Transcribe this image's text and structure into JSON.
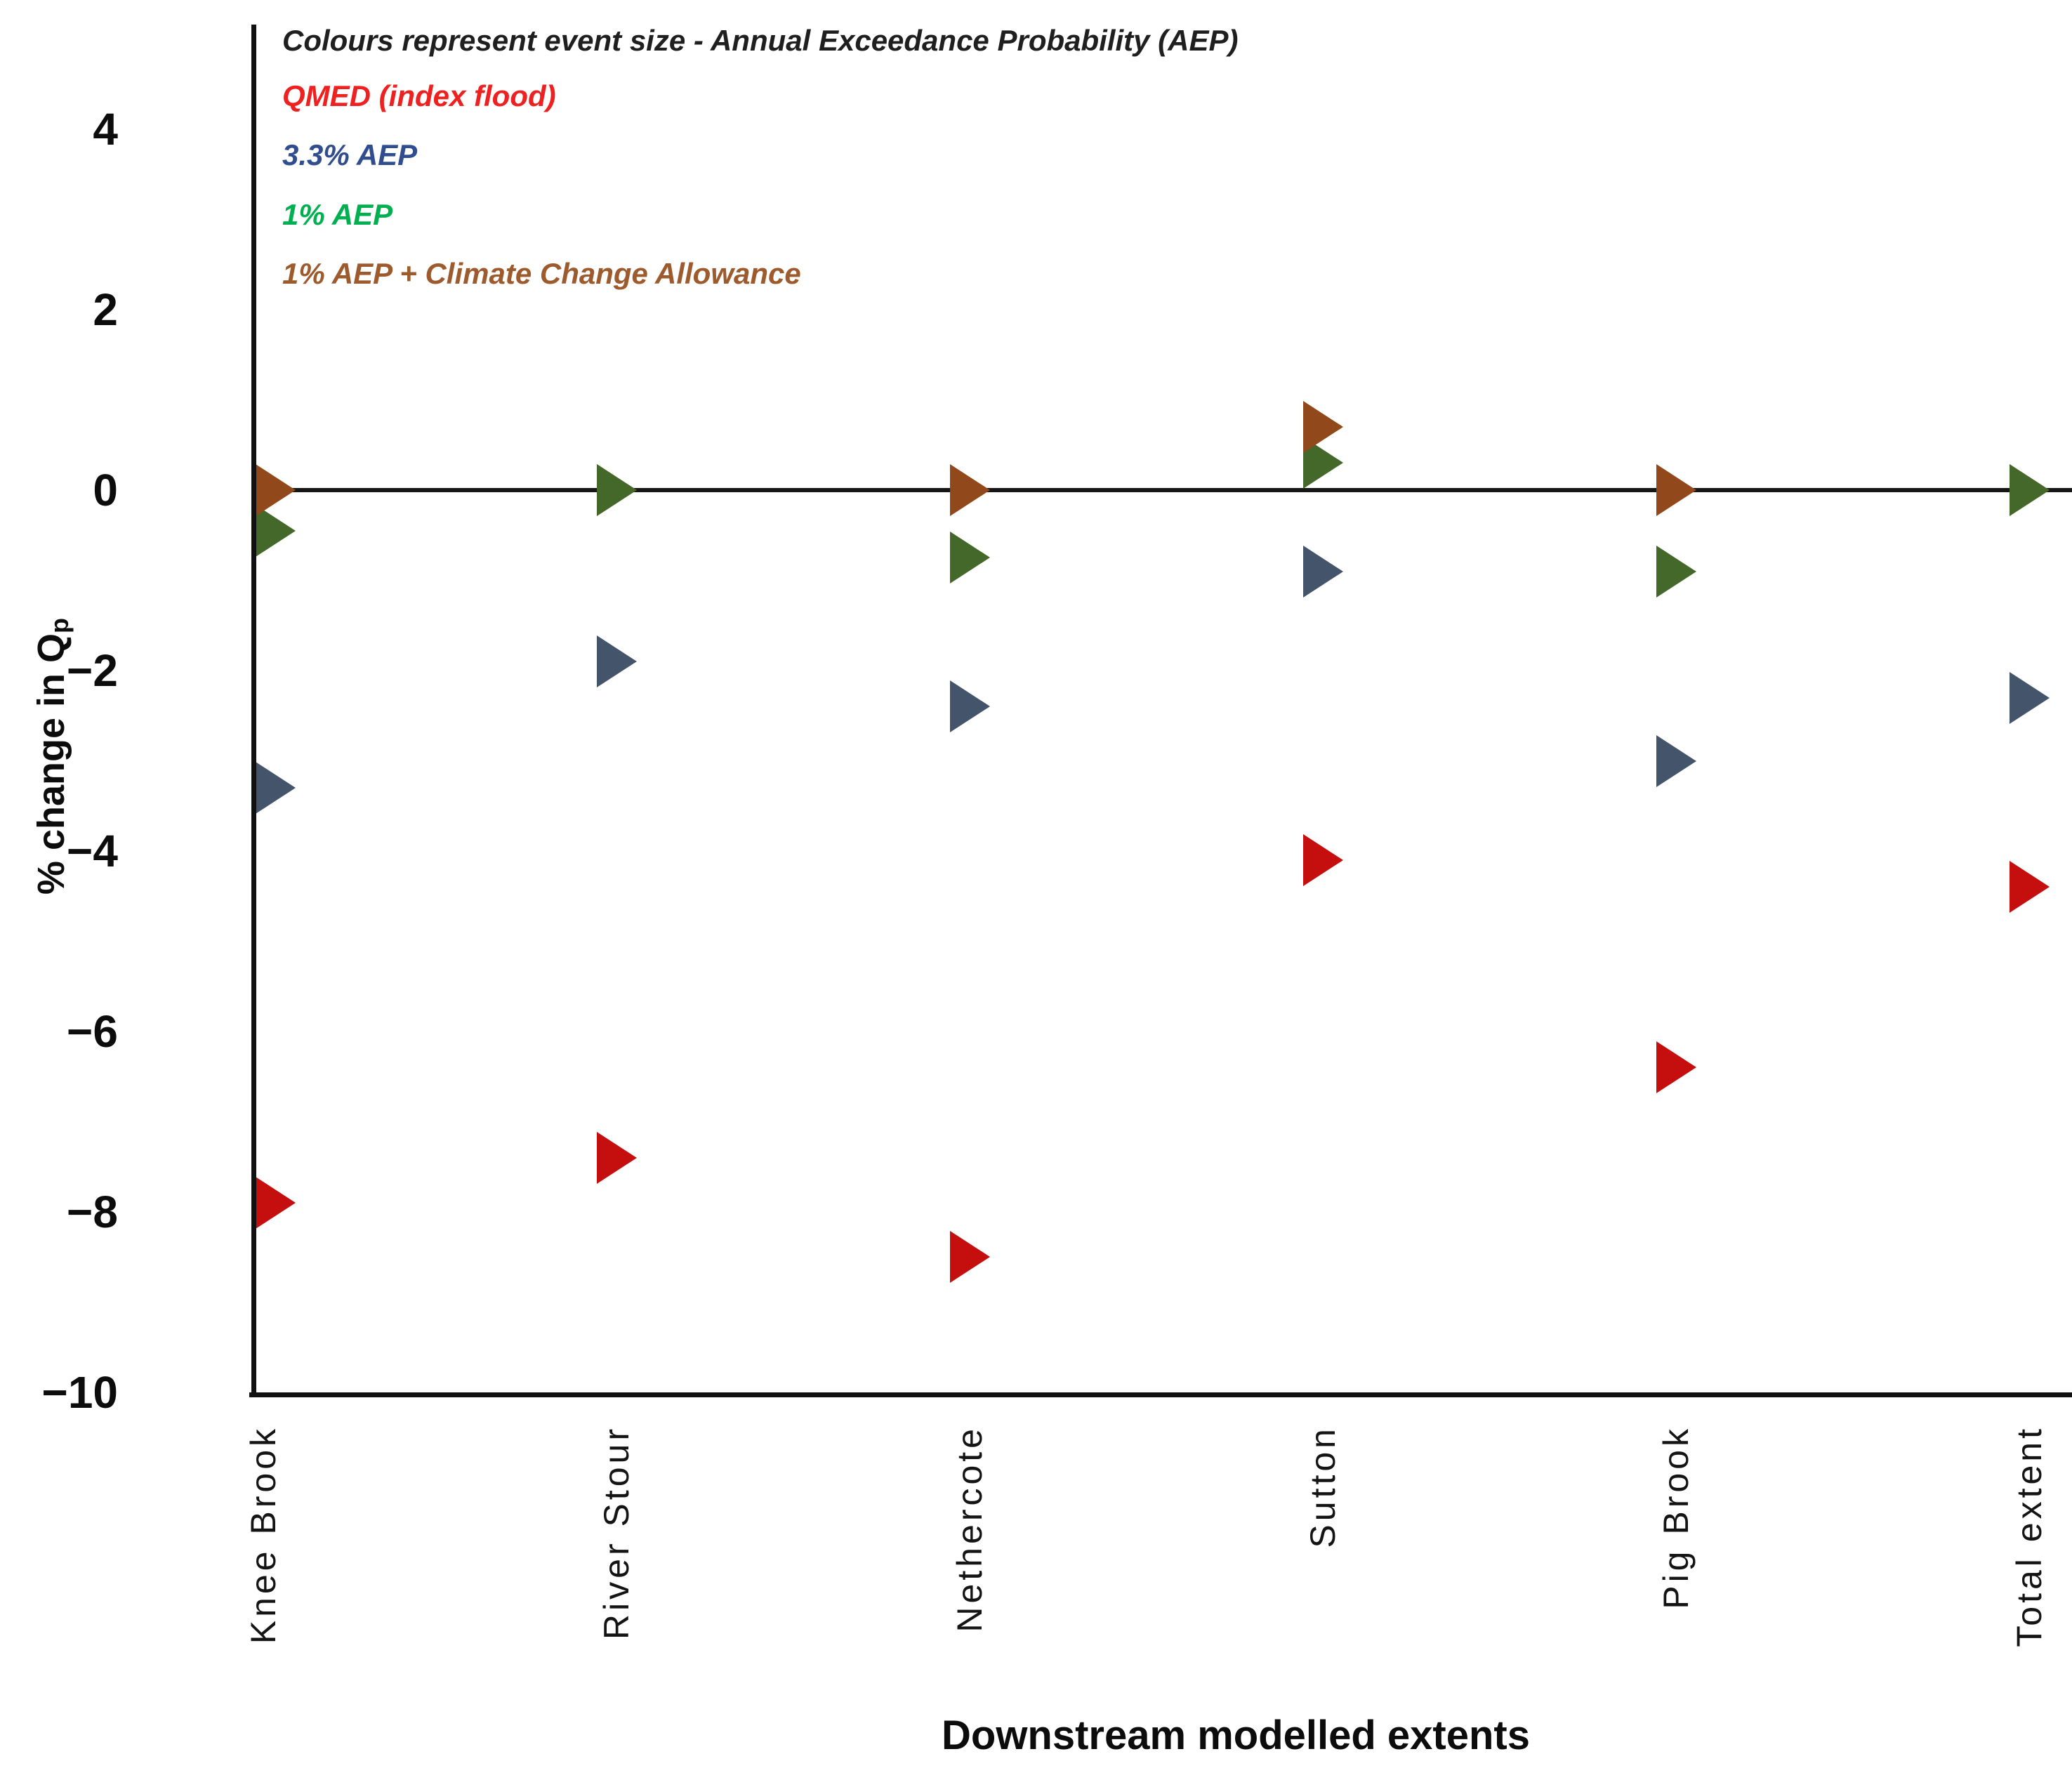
{
  "legend": {
    "note": "Colours represent event size - Annual Exceedance Probability (AEP)",
    "note_color": "#1F1F1F",
    "items": [
      {
        "series": "qmed",
        "label": "QMED (index flood)",
        "color": "#EF2020"
      },
      {
        "series": "aep33",
        "label": "3.3% AEP",
        "color": "#2F4D8F"
      },
      {
        "series": "aep1",
        "label": "1% AEP",
        "color": "#00B050"
      },
      {
        "series": "aep1cc",
        "label": "1% AEP + Climate Change Allowance",
        "color": "#9D5B2D"
      }
    ]
  },
  "chart_data": {
    "type": "scatter",
    "marker_shape": "right-pointing-triangle",
    "title": "",
    "xlabel": "Downstream modelled extents",
    "ylabel": "% change in Q",
    "ylabel_subscript": "p",
    "ylim": [
      -10,
      5
    ],
    "yticks": [
      4,
      2,
      0,
      -2,
      -4,
      -6,
      -8,
      -10
    ],
    "zero_line": true,
    "grid": false,
    "legend_position": "top-left-inside",
    "categories": [
      "Knee Brook",
      "River Stour",
      "Nethercote",
      "Sutton",
      "Pig Brook",
      "Total extent"
    ],
    "series": [
      {
        "id": "qmed",
        "name": "QMED (index flood)",
        "marker_color": "#C50E0E",
        "values": [
          -7.9,
          -7.4,
          -8.5,
          -4.1,
          -6.4,
          -4.4
        ]
      },
      {
        "id": "aep33",
        "name": "3.3% AEP",
        "marker_color": "#44546A",
        "values": [
          -3.3,
          -1.9,
          -2.4,
          -0.9,
          -3.0,
          -2.3
        ]
      },
      {
        "id": "aep1",
        "name": "1% AEP",
        "marker_color": "#44682A",
        "values": [
          -0.45,
          0.0,
          -0.75,
          0.3,
          -0.9,
          0.0
        ]
      },
      {
        "id": "aep1cc",
        "name": "1% AEP + Climate Change Allowance",
        "marker_color": "#91491B",
        "values": [
          0.0,
          0.0,
          0.0,
          0.7,
          0.0,
          0.0
        ]
      }
    ],
    "paint_order": [
      [
        "qmed",
        "aep33",
        "aep1",
        "aep1cc"
      ],
      [
        "aep1cc",
        "aep1",
        "aep33",
        "qmed"
      ],
      [
        "qmed",
        "aep33",
        "aep1",
        "aep1cc"
      ],
      [
        "aep1",
        "aep1cc",
        "aep33",
        "qmed"
      ],
      [
        "qmed",
        "aep33",
        "aep1",
        "aep1cc"
      ],
      [
        "aep1cc",
        "aep1",
        "aep33",
        "qmed"
      ]
    ]
  }
}
